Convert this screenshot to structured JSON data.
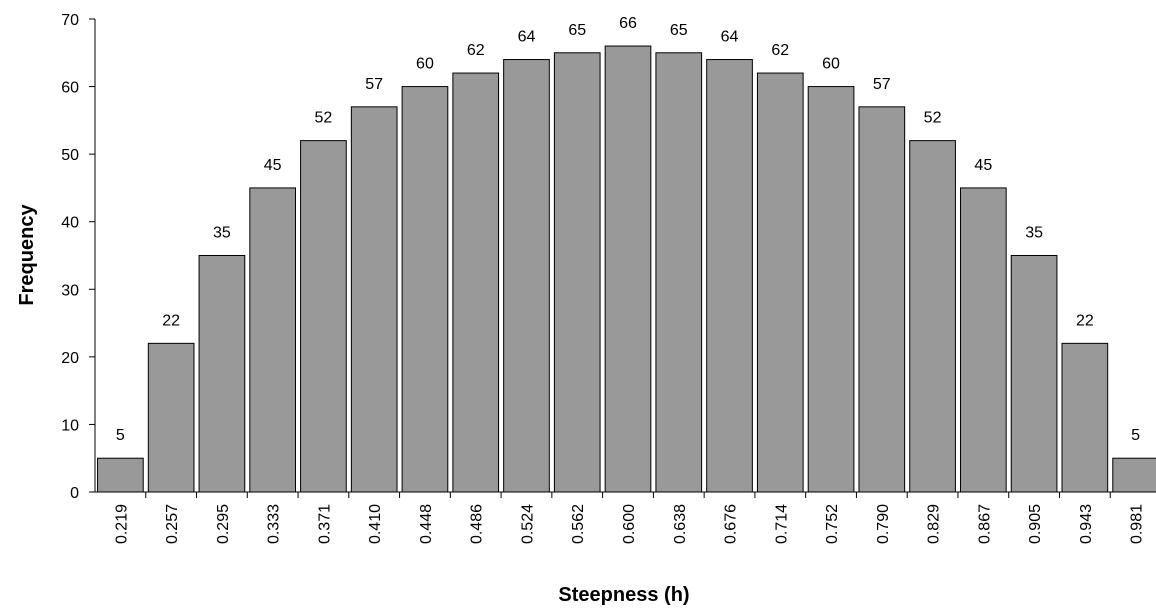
{
  "chart_data": {
    "type": "bar",
    "title": "",
    "xlabel": "Steepness (h)",
    "ylabel": "Frequency",
    "ylim": [
      0,
      70
    ],
    "yticks": [
      0,
      10,
      20,
      30,
      40,
      50,
      60,
      70
    ],
    "categories": [
      "0.219",
      "0.257",
      "0.295",
      "0.333",
      "0.371",
      "0.410",
      "0.448",
      "0.486",
      "0.524",
      "0.562",
      "0.600",
      "0.638",
      "0.676",
      "0.714",
      "0.752",
      "0.790",
      "0.829",
      "0.867",
      "0.905",
      "0.943",
      "0.981"
    ],
    "values": [
      5,
      22,
      35,
      45,
      52,
      57,
      60,
      62,
      64,
      65,
      66,
      65,
      64,
      62,
      60,
      57,
      52,
      45,
      35,
      22,
      5
    ],
    "data_labels_shown": true,
    "grid": false,
    "legend": "none",
    "bar_color": "#999999",
    "bar_edge_color": "#000000"
  }
}
